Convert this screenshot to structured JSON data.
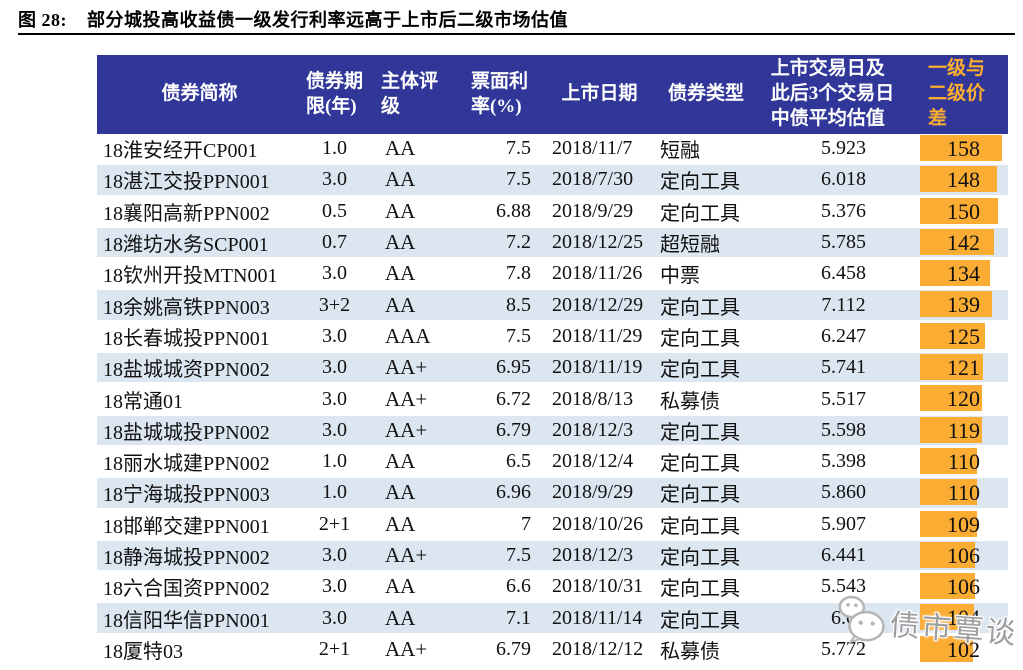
{
  "figure": {
    "label": "图 28:",
    "title": "部分城投高收益债一级发行利率远高于上市后二级市场估值"
  },
  "chart_data": {
    "type": "table",
    "columns": [
      {
        "key": "name",
        "label": "债券简称"
      },
      {
        "key": "term",
        "label": "债券期\n限(年)"
      },
      {
        "key": "rating",
        "label": "主体评\n级"
      },
      {
        "key": "coupon",
        "label": "票面利\n率(%)"
      },
      {
        "key": "date",
        "label": "上市日期"
      },
      {
        "key": "type",
        "label": "债券类型"
      },
      {
        "key": "valuation",
        "label": "上市交易日及\n此后3个交易日\n中债平均估值"
      },
      {
        "key": "spread",
        "label": "一级与\n二级价\n差"
      }
    ],
    "rows": [
      {
        "name": "18淮安经开CP001",
        "term": "1.0",
        "rating": "AA",
        "coupon": "7.5",
        "date": "2018/11/7",
        "type": "短融",
        "valuation": "5.923",
        "spread": 158
      },
      {
        "name": "18湛江交投PPN001",
        "term": "3.0",
        "rating": "AA",
        "coupon": "7.5",
        "date": "2018/7/30",
        "type": "定向工具",
        "valuation": "6.018",
        "spread": 148
      },
      {
        "name": "18襄阳高新PPN002",
        "term": "0.5",
        "rating": "AA",
        "coupon": "6.88",
        "date": "2018/9/29",
        "type": "定向工具",
        "valuation": "5.376",
        "spread": 150
      },
      {
        "name": "18潍坊水务SCP001",
        "term": "0.7",
        "rating": "AA",
        "coupon": "7.2",
        "date": "2018/12/25",
        "type": "超短融",
        "valuation": "5.785",
        "spread": 142
      },
      {
        "name": "18钦州开投MTN001",
        "term": "3.0",
        "rating": "AA",
        "coupon": "7.8",
        "date": "2018/11/26",
        "type": "中票",
        "valuation": "6.458",
        "spread": 134
      },
      {
        "name": "18余姚高铁PPN003",
        "term": "3+2",
        "rating": "AA",
        "coupon": "8.5",
        "date": "2018/12/29",
        "type": "定向工具",
        "valuation": "7.112",
        "spread": 139
      },
      {
        "name": "18长春城投PPN001",
        "term": "3.0",
        "rating": "AAA",
        "coupon": "7.5",
        "date": "2018/11/29",
        "type": "定向工具",
        "valuation": "6.247",
        "spread": 125
      },
      {
        "name": "18盐城城资PPN002",
        "term": "3.0",
        "rating": "AA+",
        "coupon": "6.95",
        "date": "2018/11/19",
        "type": "定向工具",
        "valuation": "5.741",
        "spread": 121
      },
      {
        "name": "18常通01",
        "term": "3.0",
        "rating": "AA+",
        "coupon": "6.72",
        "date": "2018/8/13",
        "type": "私募债",
        "valuation": "5.517",
        "spread": 120
      },
      {
        "name": "18盐城城投PPN002",
        "term": "3.0",
        "rating": "AA+",
        "coupon": "6.79",
        "date": "2018/12/3",
        "type": "定向工具",
        "valuation": "5.598",
        "spread": 119
      },
      {
        "name": "18丽水城建PPN002",
        "term": "1.0",
        "rating": "AA",
        "coupon": "6.5",
        "date": "2018/12/4",
        "type": "定向工具",
        "valuation": "5.398",
        "spread": 110
      },
      {
        "name": "18宁海城投PPN003",
        "term": "1.0",
        "rating": "AA",
        "coupon": "6.96",
        "date": "2018/9/29",
        "type": "定向工具",
        "valuation": "5.860",
        "spread": 110
      },
      {
        "name": "18邯郸交建PPN001",
        "term": "2+1",
        "rating": "AA",
        "coupon": "7",
        "date": "2018/10/26",
        "type": "定向工具",
        "valuation": "5.907",
        "spread": 109
      },
      {
        "name": "18静海城投PPN002",
        "term": "3.0",
        "rating": "AA+",
        "coupon": "7.5",
        "date": "2018/12/3",
        "type": "定向工具",
        "valuation": "6.441",
        "spread": 106
      },
      {
        "name": "18六合国资PPN002",
        "term": "3.0",
        "rating": "AA",
        "coupon": "6.6",
        "date": "2018/10/31",
        "type": "定向工具",
        "valuation": "5.543",
        "spread": 106
      },
      {
        "name": "18信阳华信PPN001",
        "term": "3.0",
        "rating": "AA",
        "coupon": "7.1",
        "date": "2018/11/14",
        "type": "定向工具",
        "valuation": "6.0",
        "spread": 104
      },
      {
        "name": "18厦特03",
        "term": "2+1",
        "rating": "AA+",
        "coupon": "6.79",
        "date": "2018/12/12",
        "type": "私募债",
        "valuation": "5.772",
        "spread": 102
      }
    ],
    "highlight": {
      "column": "一级与二级价差",
      "style": "orange data bar proportional to value",
      "max_value": 158,
      "min_value": 102
    }
  },
  "watermark": {
    "text": "债市覃谈",
    "icon": "wechat-chat-bubbles"
  },
  "colors": {
    "header_bg": "#303799",
    "header_text": "#FFFFFF",
    "header_accent_text": "#FBAD31",
    "row_stripe": "#DCE6F1",
    "data_bar": "#FBAC33",
    "title_text": "#000000",
    "watermark_text": "#9E9E9E"
  }
}
